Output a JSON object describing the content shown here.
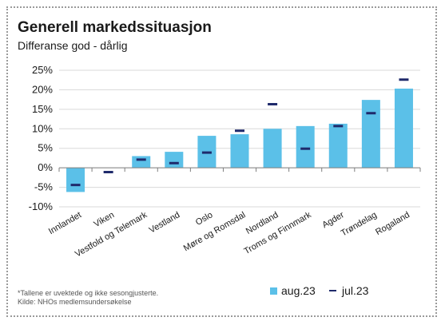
{
  "title": "Generell markedssituasjon",
  "subtitle": "Differanse god - dårlig",
  "footnote_1": "*Tallene er uvektede og ikke sesongjusterte.",
  "footnote_2": "Kilde: NHOs medlemsundersøkelse",
  "colors": {
    "bar": "#5bc0e8",
    "marker": "#1f2a6b",
    "grid": "#d9d9d9",
    "axis": "#7f7f7f"
  },
  "chart_data": {
    "type": "bar",
    "categories": [
      "Innlandet",
      "Viken",
      "Vestfold og Telemark",
      "Vestland",
      "Oslo",
      "Møre og Romsdal",
      "Nordland",
      "Troms og Finnmark",
      "Agder",
      "Trøndelag",
      "Rogaland"
    ],
    "series": [
      {
        "name": "aug.23",
        "kind": "bar",
        "values": [
          -6.2,
          0.0,
          3.0,
          4.1,
          8.2,
          8.6,
          10.0,
          10.7,
          11.3,
          17.4,
          20.3
        ]
      },
      {
        "name": "jul.23",
        "kind": "marker",
        "values": [
          -4.4,
          -1.1,
          2.1,
          1.2,
          3.9,
          9.5,
          16.3,
          4.9,
          10.7,
          14.0,
          22.6
        ]
      }
    ],
    "yticks": [
      "25%",
      "20%",
      "15%",
      "10%",
      "5%",
      "0%",
      "-5%",
      "-10%"
    ],
    "ylim": [
      -10,
      25
    ],
    "grid": true,
    "legend_position": "bottom-right"
  }
}
